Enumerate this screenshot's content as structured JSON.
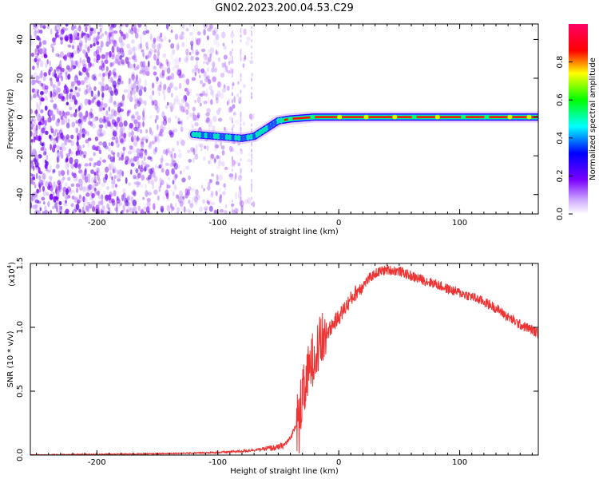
{
  "figure": {
    "title": "GN02.2023.200.04.53.C29"
  },
  "chart_data": [
    {
      "type": "heatmap",
      "title": "GN02.2023.200.04.53.C29",
      "xlabel": "Height of straight line (km)",
      "ylabel": "Frequency (Hz)",
      "xlim": [
        -255,
        165
      ],
      "ylim": [
        -50,
        48
      ],
      "x_ticks": [
        "-200",
        "-100",
        "0",
        "100"
      ],
      "y_ticks": [
        "40",
        "20",
        "0",
        "-20",
        "-40"
      ],
      "colorbar": {
        "label": "Normalized spectral amplitude",
        "range": [
          0,
          1
        ],
        "ticks": [
          "0.0",
          "0.2",
          "0.4",
          "0.6",
          "0.8"
        ],
        "colors": [
          "#ffffff",
          "#7a00ff",
          "#0000ff",
          "#00ffff",
          "#00ff00",
          "#ffff00",
          "#ff0000",
          "#ff0066"
        ]
      },
      "signal_track": {
        "x": [
          -120,
          -100,
          -90,
          -80,
          -70,
          -60,
          -50,
          -40,
          -30,
          -20,
          -10,
          0,
          50,
          100,
          165
        ],
        "y": [
          -9,
          -10,
          -10.5,
          -11,
          -10,
          -6,
          -2,
          -1,
          -0.5,
          0,
          0,
          0,
          0,
          0,
          0
        ]
      },
      "noise_extent_x": [
        -255,
        -70
      ]
    },
    {
      "type": "line",
      "xlabel": "Height of straight line (km)",
      "ylabel": "SNR (10 * v/v)",
      "yscale_label": "(x10",
      "yscale_exp": "4",
      "yscale_close": ")",
      "xlim": [
        -255,
        165
      ],
      "ylim": [
        0,
        1.5
      ],
      "x_ticks": [
        "-200",
        "-100",
        "0",
        "100"
      ],
      "y_ticks": [
        "0.0",
        "0.5",
        "1.0",
        "1.5"
      ],
      "line_color": "#ee3333",
      "series": [
        {
          "x": [
            -255,
            -200,
            -150,
            -100,
            -80,
            -70,
            -60,
            -50,
            -45,
            -40,
            -35,
            -30,
            -25,
            -20,
            -15,
            -10,
            -5,
            0,
            5,
            10,
            15,
            20,
            25,
            30,
            35,
            40,
            50,
            60,
            70,
            80,
            90,
            100,
            110,
            120,
            130,
            140,
            150,
            160,
            165
          ],
          "values": [
            0.0,
            0.005,
            0.01,
            0.02,
            0.03,
            0.04,
            0.05,
            0.06,
            0.08,
            0.13,
            0.25,
            0.45,
            0.65,
            0.8,
            0.88,
            0.95,
            1.02,
            1.08,
            1.15,
            1.22,
            1.28,
            1.33,
            1.38,
            1.42,
            1.44,
            1.45,
            1.44,
            1.4,
            1.37,
            1.34,
            1.3,
            1.27,
            1.24,
            1.2,
            1.15,
            1.08,
            1.02,
            0.98,
            0.95
          ]
        }
      ]
    }
  ]
}
